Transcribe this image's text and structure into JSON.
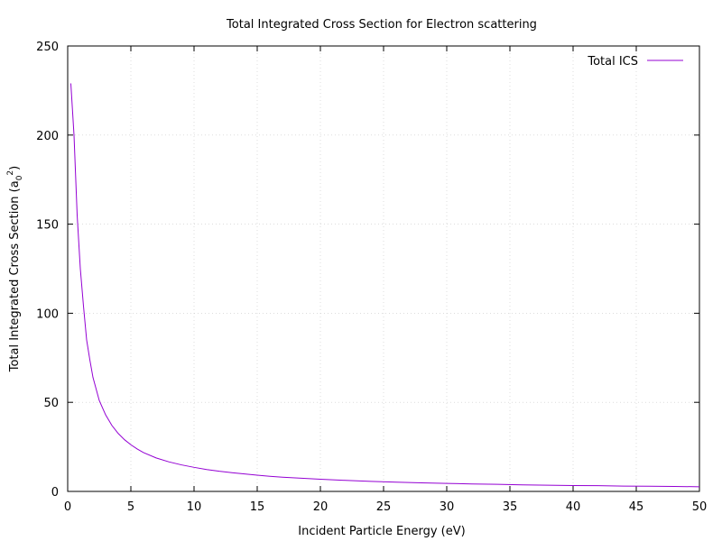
{
  "chart_data": {
    "type": "line",
    "title": "Total Integrated Cross Section for Electron scattering",
    "xlabel": "Incident Particle Energy (eV)",
    "ylabel_main": "Total Integrated Cross Section (a",
    "ylabel_sub": "0",
    "ylabel_sup": "2",
    "ylabel_close": ")",
    "xlim": [
      0,
      50
    ],
    "ylim": [
      0,
      250
    ],
    "xticks": [
      "0",
      "5",
      "10",
      "15",
      "20",
      "25",
      "30",
      "35",
      "40",
      "45",
      "50"
    ],
    "yticks": [
      "0",
      "50",
      "100",
      "150",
      "200",
      "250"
    ],
    "grid": true,
    "legend_position": "top-right",
    "series": [
      {
        "name": "Total ICS",
        "color": "#9400d3",
        "x": [
          0.25,
          0.5,
          0.75,
          1,
          1.25,
          1.5,
          1.75,
          2,
          2.5,
          3,
          3.5,
          4,
          4.5,
          5,
          5.5,
          6,
          7,
          8,
          9,
          10,
          11,
          12,
          13,
          14,
          15,
          16,
          17,
          18,
          19,
          20,
          22,
          24,
          26,
          28,
          30,
          32,
          34,
          36,
          38,
          40,
          42,
          44,
          46,
          48,
          50
        ],
        "y": [
          229,
          200,
          155,
          125,
          104,
          85,
          74,
          64,
          51,
          43,
          37,
          32.5,
          29,
          26.2,
          23.8,
          21.8,
          18.8,
          16.6,
          14.9,
          13.5,
          12.3,
          11.3,
          10.5,
          9.8,
          9.1,
          8.5,
          8.0,
          7.6,
          7.2,
          6.8,
          6.2,
          5.6,
          5.2,
          4.8,
          4.5,
          4.2,
          4.0,
          3.7,
          3.5,
          3.3,
          3.2,
          3.0,
          2.9,
          2.8,
          2.6
        ]
      }
    ]
  }
}
